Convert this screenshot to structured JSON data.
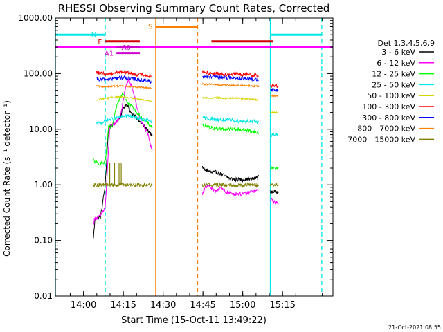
{
  "chart_data": {
    "type": "line",
    "title": "RHESSI Observing Summary Count Rates, Corrected",
    "xlabel": "Start Time (15-Oct-11 13:49:22)",
    "ylabel": "Corrected Count Rate (s⁻¹ detector⁻¹)",
    "timestamp": "21-Oct-2021 08:55",
    "x_unit": "minutes after 13:49:22",
    "xlim": [
      0,
      104.6
    ],
    "ylim": [
      0.01,
      1000
    ],
    "y_scale": "log",
    "x_ticks": [
      {
        "label": "14:00",
        "x": 10.6
      },
      {
        "label": "14:15",
        "x": 25.6
      },
      {
        "label": "14:30",
        "x": 40.6
      },
      {
        "label": "14:45",
        "x": 55.6
      },
      {
        "label": "15:00",
        "x": 70.6
      },
      {
        "label": "15:15",
        "x": 85.6
      }
    ],
    "y_ticks": [
      "1000.00",
      "100.00",
      "10.00",
      "1.00",
      "0.10",
      "0.01"
    ],
    "y_tick_values": [
      1000,
      100,
      10,
      1,
      0.1,
      0.01
    ],
    "legend": {
      "header": "Det 1,3,4,5,6,9",
      "placement": "right"
    },
    "series": [
      {
        "name": "3 - 6 keV",
        "color": "#000000",
        "seg1": {
          "t": [
            14.2,
            15.0,
            17.0,
            18.8,
            20.0,
            21.5,
            23.0,
            24.5,
            25.5,
            26.5,
            27.5,
            28.5,
            30.0,
            31.5,
            33.0,
            34.5,
            36.5
          ],
          "y": [
            0.1,
            0.25,
            0.26,
            1.0,
            10.5,
            12.0,
            13.5,
            17.0,
            24.0,
            28.0,
            25.0,
            19.0,
            18.0,
            14.0,
            12.0,
            10.0,
            7.5
          ]
        },
        "seg2": {
          "t": [
            55.4,
            56.0,
            57.5,
            59.0,
            61.0,
            63.0,
            65.0,
            67.0,
            69.0,
            71.0,
            73.0,
            75.0,
            76.6
          ],
          "y": [
            2.1,
            1.9,
            1.8,
            1.65,
            1.7,
            1.5,
            1.35,
            1.25,
            1.25,
            1.25,
            1.25,
            1.3,
            1.4
          ]
        },
        "seg3": {
          "t": [
            81.0,
            84.0
          ],
          "y": [
            0.75,
            0.75
          ]
        }
      },
      {
        "name": "6 - 12 keV",
        "color": "#ff00ff",
        "seg1": {
          "t": [
            14.2,
            15.0,
            17.0,
            18.8,
            20.5,
            22.0,
            23.5,
            24.5,
            25.5,
            26.5,
            27.5,
            28.5,
            30.0,
            31.5,
            33.0,
            34.5,
            36.5
          ],
          "y": [
            0.2,
            0.25,
            0.27,
            0.4,
            10.5,
            12.0,
            14.5,
            18.0,
            30.0,
            60.0,
            75.0,
            65.0,
            35.0,
            18.0,
            12.0,
            9.0,
            4.0
          ]
        },
        "seg2": {
          "t": [
            55.4,
            56.5,
            58.0,
            60.0,
            62.0,
            64.0,
            66.0,
            68.0,
            70.0,
            72.0,
            74.0,
            76.6
          ],
          "y": [
            0.7,
            0.95,
            0.95,
            0.75,
            0.9,
            0.75,
            0.7,
            0.7,
            0.68,
            0.7,
            0.75,
            0.8
          ]
        },
        "seg3": {
          "t": [
            81.0,
            82.5,
            84.0
          ],
          "y": [
            0.55,
            0.5,
            0.45
          ]
        }
      },
      {
        "name": "12 - 25 keV",
        "color": "#00ff00",
        "seg1": {
          "t": [
            14.2,
            15.5,
            17.0,
            18.8,
            20.0,
            21.5,
            23.0,
            24.5,
            25.5,
            26.5,
            27.5,
            28.5,
            30.0,
            31.5,
            33.0,
            34.5,
            36.5
          ],
          "y": [
            2.8,
            2.5,
            2.4,
            2.5,
            11.0,
            11.0,
            25.0,
            40.0,
            45.0,
            35.0,
            30.0,
            27.0,
            22.0,
            18.0,
            15.0,
            13.0,
            11.0
          ]
        },
        "seg2": {
          "t": [
            55.4,
            57.0,
            60.0,
            63.0,
            66.0,
            69.0,
            72.0,
            75.0,
            76.6
          ],
          "y": [
            12.0,
            11.0,
            10.5,
            10.0,
            10.0,
            10.0,
            9.5,
            9.0,
            8.5
          ]
        },
        "seg3": {
          "t": [
            81.0,
            84.0
          ],
          "y": [
            2.0,
            2.0
          ]
        }
      },
      {
        "name": "25 - 50 keV",
        "color": "#00e5e5",
        "seg1": {
          "t": [
            15.5,
            17.0,
            18.8,
            20.5,
            22.0,
            24.0,
            26.0,
            28.0,
            30.0,
            32.0,
            34.0,
            36.5
          ],
          "y": [
            12.5,
            13.0,
            14.0,
            15.0,
            15.5,
            16.0,
            17.5,
            17.0,
            16.5,
            15.5,
            14.5,
            14.0
          ]
        },
        "seg2": {
          "t": [
            55.4,
            58.0,
            61.0,
            64.0,
            67.0,
            70.0,
            73.0,
            76.6
          ],
          "y": [
            16.0,
            15.5,
            15.0,
            14.5,
            14.5,
            14.0,
            14.0,
            13.5
          ]
        },
        "seg3": {
          "t": [
            81.0,
            84.0
          ],
          "y": [
            8.0,
            8.0
          ]
        }
      },
      {
        "name": "50 - 100 keV",
        "color": "#d4d400",
        "seg1": {
          "t": [
            15.5,
            17.0,
            18.8,
            21.0,
            23.0,
            25.0,
            27.0,
            29.0,
            31.0,
            33.0,
            35.0,
            36.5
          ],
          "y": [
            33.0,
            35.0,
            36.0,
            37.0,
            38.0,
            38.0,
            37.0,
            36.0,
            35.0,
            34.0,
            33.0,
            32.0
          ]
        },
        "seg2": {
          "t": [
            55.4,
            58.0,
            61.0,
            64.0,
            67.0,
            70.0,
            73.0,
            76.6
          ],
          "y": [
            37.0,
            36.0,
            37.0,
            36.0,
            37.0,
            36.0,
            35.0,
            34.0
          ]
        },
        "seg3": {
          "t": [
            81.0,
            84.0
          ],
          "y": [
            20.0,
            20.0
          ]
        }
      },
      {
        "name": "100 - 300 keV",
        "color": "#ff0000",
        "seg1": {
          "t": [
            15.5,
            17.0,
            18.8,
            21.0,
            23.0,
            25.0,
            27.0,
            29.0,
            31.0,
            33.0,
            35.0,
            36.5
          ],
          "y": [
            105.0,
            100.0,
            98.0,
            100.0,
            105.0,
            108.0,
            104.0,
            100.0,
            96.0,
            95.0,
            92.0,
            90.0
          ]
        },
        "seg2": {
          "t": [
            55.4,
            58.0,
            61.0,
            64.0,
            67.0,
            70.0,
            73.0,
            76.6
          ],
          "y": [
            105.0,
            102.0,
            100.0,
            98.0,
            97.0,
            96.0,
            95.0,
            92.0
          ]
        },
        "seg3": {
          "t": [
            81.0,
            84.0
          ],
          "y": [
            60.0,
            60.0
          ]
        }
      },
      {
        "name": "300 - 800 keV",
        "color": "#0000ff",
        "seg1": {
          "t": [
            15.5,
            17.0,
            18.8,
            21.0,
            23.0,
            25.0,
            27.0,
            29.0,
            31.0,
            33.0,
            35.0,
            36.5
          ],
          "y": [
            80.0,
            78.0,
            78.0,
            80.0,
            82.0,
            85.0,
            82.0,
            80.0,
            78.0,
            76.0,
            74.0,
            72.0
          ]
        },
        "seg2": {
          "t": [
            55.4,
            58.0,
            61.0,
            64.0,
            67.0,
            70.0,
            73.0,
            76.6
          ],
          "y": [
            90.0,
            88.0,
            86.0,
            85.0,
            84.0,
            82.0,
            80.0,
            78.0
          ]
        },
        "seg3": {
          "t": [
            81.0,
            84.0
          ],
          "y": [
            50.0,
            50.0
          ]
        }
      },
      {
        "name": "800 - 7000 keV",
        "color": "#ff8000",
        "seg1": {
          "t": [
            15.5,
            17.0,
            18.8,
            21.0,
            23.0,
            25.0,
            27.0,
            29.0,
            31.0,
            33.0,
            35.0,
            36.5
          ],
          "y": [
            60.0,
            58.0,
            58.0,
            59.0,
            60.0,
            60.0,
            59.0,
            58.0,
            57.0,
            56.0,
            55.0,
            54.0
          ]
        },
        "seg2": {
          "t": [
            55.4,
            58.0,
            61.0,
            64.0,
            67.0,
            70.0,
            73.0,
            76.6
          ],
          "y": [
            65.0,
            64.0,
            63.0,
            62.0,
            61.0,
            61.0,
            60.0,
            59.0
          ]
        },
        "seg3": {
          "t": [
            81.0,
            84.0
          ],
          "y": [
            40.0,
            40.0
          ]
        }
      },
      {
        "name": "7000 - 15000 keV",
        "color": "#808000",
        "seg1": {
          "t": [
            14.2,
            18.8,
            20.0,
            24.0,
            28.0,
            32.0,
            36.5
          ],
          "y": [
            1.0,
            1.0,
            1.0,
            1.0,
            1.0,
            1.0,
            1.0
          ]
        },
        "spikes": [
          {
            "t": 20.5,
            "y": 2.5
          },
          {
            "t": 22.3,
            "y": 2.5
          },
          {
            "t": 24.0,
            "y": 2.5
          },
          {
            "t": 24.8,
            "y": 2.5
          }
        ],
        "seg2": {
          "t": [
            55.4,
            76.6
          ],
          "y": [
            1.0,
            1.0
          ]
        },
        "seg3": {
          "t": [
            81.0,
            84.0
          ],
          "y": [
            1.0,
            1.0
          ]
        }
      }
    ],
    "vertical_lines": [
      {
        "t": 0.0,
        "color": "#00e5e5",
        "style": "solid"
      },
      {
        "t": 18.8,
        "color": "#00e5e5",
        "style": "dashed"
      },
      {
        "t": 37.8,
        "color": "#ff8000",
        "style": "solid"
      },
      {
        "t": 53.6,
        "color": "#ff8000",
        "style": "dashed"
      },
      {
        "t": 81.0,
        "color": "#00e5e5",
        "style": "solid"
      },
      {
        "t": 100.4,
        "color": "#00e5e5",
        "style": "dashed"
      }
    ],
    "flag_bars": [
      {
        "label": "N",
        "color": "#00e5e5",
        "segments": [
          [
            -7.0,
            18.8
          ],
          [
            81.0,
            100.4
          ]
        ],
        "y": 500,
        "label_t": 13.5,
        "label_y": 520
      },
      {
        "label": "S",
        "color": "#ff8000",
        "segments": [
          [
            37.8,
            53.6
          ]
        ],
        "y": 700,
        "label_t": 35.0,
        "label_y": 720
      },
      {
        "label": "F",
        "color": "#d00000",
        "segments": [
          [
            18.8,
            31.8
          ],
          [
            58.8,
            82.0
          ]
        ],
        "y": 380,
        "label_t": 16.0,
        "label_y": 380
      },
      {
        "label": "A0",
        "color": "#d000d0",
        "segments": [
          [
            23.0,
            31.8
          ]
        ],
        "y": 300,
        "label_t": 25.0,
        "label_y": 300
      },
      {
        "label": "A1",
        "color": "#d000d0",
        "segments": [
          [
            23.0,
            31.8
          ]
        ],
        "y": 235,
        "label_t": 18.5,
        "label_y": 235
      }
    ],
    "attenuator_bar": {
      "color": "#ff00ff",
      "segments": [
        [
          -7.0,
          104.6
        ]
      ],
      "y": 300
    }
  }
}
